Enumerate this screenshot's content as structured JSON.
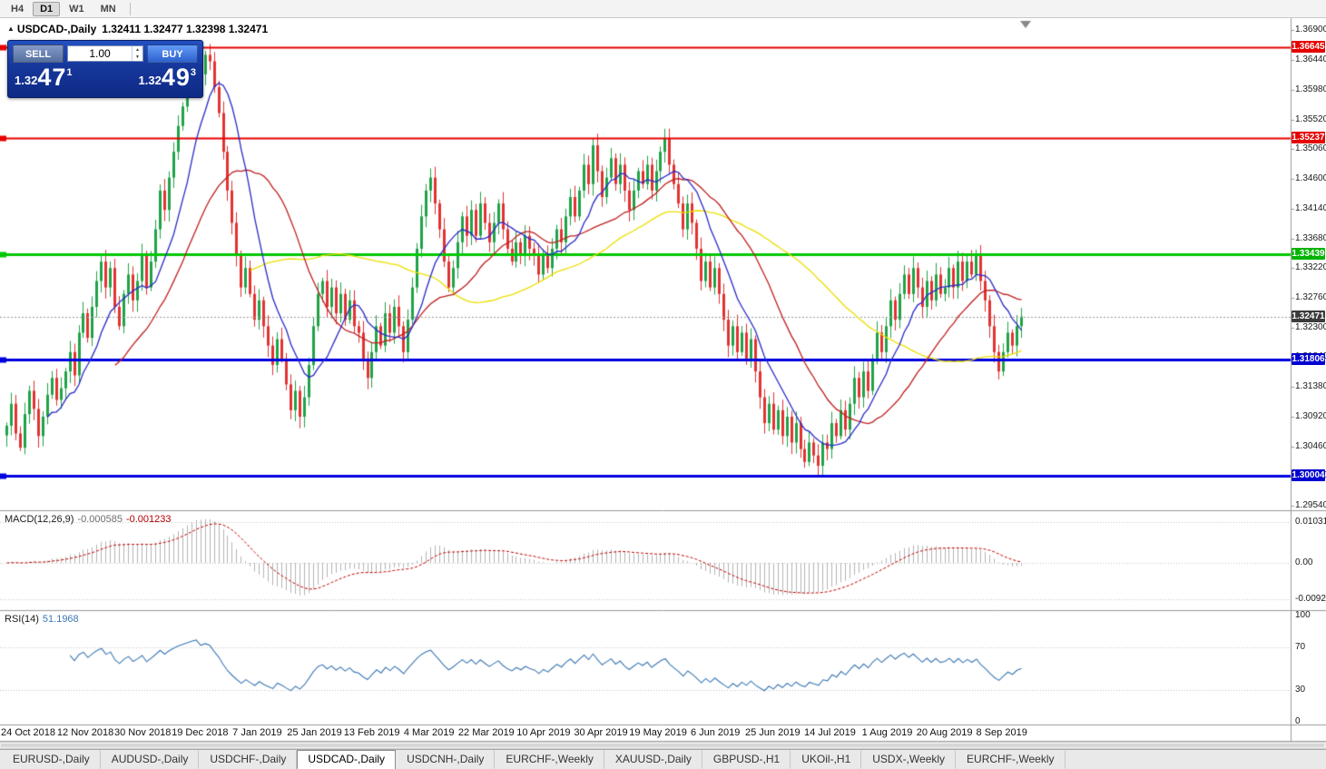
{
  "toolbar": {
    "timeframes": [
      "H4",
      "D1",
      "W1",
      "MN"
    ],
    "active_timeframe": "D1"
  },
  "chart_title": {
    "collapse_icon": "▲",
    "symbol": "USDCAD-,Daily",
    "ohlc": "1.32411 1.32477 1.32398 1.32471"
  },
  "trade_panel": {
    "sell_label": "SELL",
    "buy_label": "BUY",
    "volume": "1.00",
    "spinner_up_icon": "▲",
    "spinner_down_icon": "▼",
    "sell_price": {
      "prefix": "1.32",
      "big": "47",
      "sup": "1"
    },
    "buy_price": {
      "prefix": "1.32",
      "big": "49",
      "sup": "3"
    }
  },
  "price_axis": {
    "labels": [
      "1.36900",
      "1.36440",
      "1.35980",
      "1.35520",
      "1.35060",
      "1.34600",
      "1.34140",
      "1.33680",
      "1.33220",
      "1.32760",
      "1.32300",
      "1.31840",
      "1.31380",
      "1.30920",
      "1.30460",
      "1.30000",
      "1.29540"
    ]
  },
  "macd": {
    "name": "MACD(12,26,9)",
    "main_value": "-0.000585",
    "signal_value": "-0.001233",
    "axis_labels": [
      "0.010311",
      "0.00",
      "-0.009203"
    ]
  },
  "rsi": {
    "name": "RSI(14)",
    "value": "51.1968",
    "axis_labels": [
      "100",
      "70",
      "30",
      "0"
    ]
  },
  "tabs": {
    "active_index": 3,
    "items": [
      "EURUSD-,Daily",
      "AUDUSD-,Daily",
      "USDCHF-,Daily",
      "USDCAD-,Daily",
      "USDCNH-,Daily",
      "EURCHF-,Weekly",
      "XAUUSD-,Daily",
      "GBPUSD-,H1",
      "UKOil-,H1",
      "USDX-,Weekly",
      "EURCHF-,Weekly"
    ]
  },
  "chart_data": {
    "type": "candlestick",
    "symbol": "USDCAD",
    "timeframe": "Daily",
    "current_bar": {
      "open": 1.32411,
      "high": 1.32477,
      "low": 1.32398,
      "close": 1.32471
    },
    "bid": 1.32471,
    "ask": 1.32493,
    "ylim": [
      1.295,
      1.3706
    ],
    "date_labels": [
      "24 Oct 2018",
      "12 Nov 2018",
      "30 Nov 2018",
      "19 Dec 2018",
      "7 Jan 2019",
      "25 Jan 2019",
      "13 Feb 2019",
      "4 Mar 2019",
      "22 Mar 2019",
      "10 Apr 2019",
      "30 Apr 2019",
      "19 May 2019",
      "6 Jun 2019",
      "25 Jun 2019",
      "14 Jul 2019",
      "1 Aug 2019",
      "20 Aug 2019",
      "8 Sep 2019"
    ],
    "closes": [
      1.3078,
      1.3112,
      1.3066,
      1.3044,
      1.3096,
      1.3132,
      1.3104,
      1.3062,
      1.3092,
      1.3126,
      1.3152,
      1.3118,
      1.3136,
      1.3162,
      1.3192,
      1.3156,
      1.3222,
      1.3252,
      1.3214,
      1.3262,
      1.3302,
      1.3332,
      1.3292,
      1.3322,
      1.3262,
      1.3232,
      1.3282,
      1.3312,
      1.3272,
      1.3302,
      1.3342,
      1.3292,
      1.3332,
      1.3382,
      1.3442,
      1.3412,
      1.3462,
      1.3502,
      1.3542,
      1.3572,
      1.3602,
      1.3632,
      1.3656,
      1.3622,
      1.3652,
      1.3642,
      1.3602,
      1.3562,
      1.3502,
      1.3442,
      1.3392,
      1.3342,
      1.3292,
      1.3322,
      1.3282,
      1.3242,
      1.3272,
      1.3232,
      1.3202,
      1.3172,
      1.3212,
      1.3182,
      1.3142,
      1.3102,
      1.3132,
      1.3092,
      1.3122,
      1.3172,
      1.3232,
      1.3282,
      1.3302,
      1.3262,
      1.3292,
      1.3252,
      1.3282,
      1.3242,
      1.3272,
      1.3232,
      1.3222,
      1.3182,
      1.3152,
      1.3192,
      1.3232,
      1.3202,
      1.3252,
      1.3222,
      1.3262,
      1.3232,
      1.3192,
      1.3242,
      1.3292,
      1.3352,
      1.3402,
      1.3442,
      1.3462,
      1.3422,
      1.3382,
      1.3332,
      1.3292,
      1.3322,
      1.3362,
      1.3402,
      1.3372,
      1.3412,
      1.3372,
      1.3422,
      1.3392,
      1.3362,
      1.3392,
      1.3422,
      1.3382,
      1.3352,
      1.3332,
      1.3362,
      1.3342,
      1.3372,
      1.3352,
      1.3342,
      1.3312,
      1.3342,
      1.3322,
      1.3352,
      1.3382,
      1.3362,
      1.3402,
      1.3432,
      1.3402,
      1.3442,
      1.3482,
      1.3452,
      1.3512,
      1.3472,
      1.3432,
      1.3462,
      1.3492,
      1.3452,
      1.3482,
      1.3442,
      1.3412,
      1.3442,
      1.3472,
      1.3452,
      1.3482,
      1.3442,
      1.3472,
      1.3502,
      1.3522,
      1.3482,
      1.3452,
      1.3422,
      1.3382,
      1.3422,
      1.3392,
      1.3352,
      1.3302,
      1.3332,
      1.3292,
      1.3322,
      1.3282,
      1.3242,
      1.3202,
      1.3232,
      1.3192,
      1.3222,
      1.3182,
      1.3212,
      1.3162,
      1.3122,
      1.3082,
      1.3112,
      1.3072,
      1.3102,
      1.3062,
      1.3092,
      1.3052,
      1.3082,
      1.3042,
      1.3022,
      1.3052,
      1.3032,
      1.3016,
      1.3052,
      1.3042,
      1.3082,
      1.3062,
      1.3102,
      1.3072,
      1.3112,
      1.3152,
      1.3122,
      1.3162,
      1.3132,
      1.3182,
      1.3222,
      1.3192,
      1.3232,
      1.3272,
      1.3242,
      1.3282,
      1.3312,
      1.3282,
      1.3322,
      1.3292,
      1.3262,
      1.3302,
      1.3272,
      1.3312,
      1.3282,
      1.3292,
      1.3322,
      1.3292,
      1.3332,
      1.3302,
      1.3332,
      1.3312,
      1.3342,
      1.3302,
      1.3272,
      1.3232,
      1.3192,
      1.3162,
      1.3192,
      1.3222,
      1.3202,
      1.3232,
      1.3247
    ],
    "levels": [
      {
        "price": 1.36645,
        "label": "1.36645",
        "color": "#e60000",
        "badge": "#e60000",
        "width": 2,
        "handle": true,
        "style": "solid"
      },
      {
        "price": 1.35237,
        "label": "1.35237",
        "color": "#e60000",
        "badge": "#e60000",
        "width": 2,
        "handle": true,
        "style": "solid"
      },
      {
        "price": 1.33439,
        "label": "1.33439",
        "color": "#00c800",
        "badge": "#00b400",
        "width": 3,
        "handle": true,
        "style": "solid"
      },
      {
        "price": 1.31806,
        "label": "1.31806",
        "color": "#0000e0",
        "badge": "#0000d0",
        "width": 3,
        "handle": true,
        "style": "solid"
      },
      {
        "price": 1.30004,
        "label": "1.30004",
        "color": "#0000e0",
        "badge": "#0000d0",
        "width": 3,
        "handle": true,
        "style": "solid"
      },
      {
        "price": 1.32471,
        "label": "1.32471",
        "color": "#9a9a9a",
        "badge": "#3c3c3c",
        "width": 1,
        "handle": false,
        "style": "dotted"
      }
    ],
    "moving_averages": [
      {
        "period": 55,
        "color": "#ecdf00"
      },
      {
        "period": 25,
        "color": "#c01e1e"
      },
      {
        "period": 10,
        "color": "#2a2ac8"
      }
    ],
    "colors": {
      "up": "#1fa347",
      "down": "#e23232",
      "macd_histogram": "#b4b4b4",
      "macd_signal": "#c00000",
      "rsi_line": "#3c78b4"
    }
  }
}
